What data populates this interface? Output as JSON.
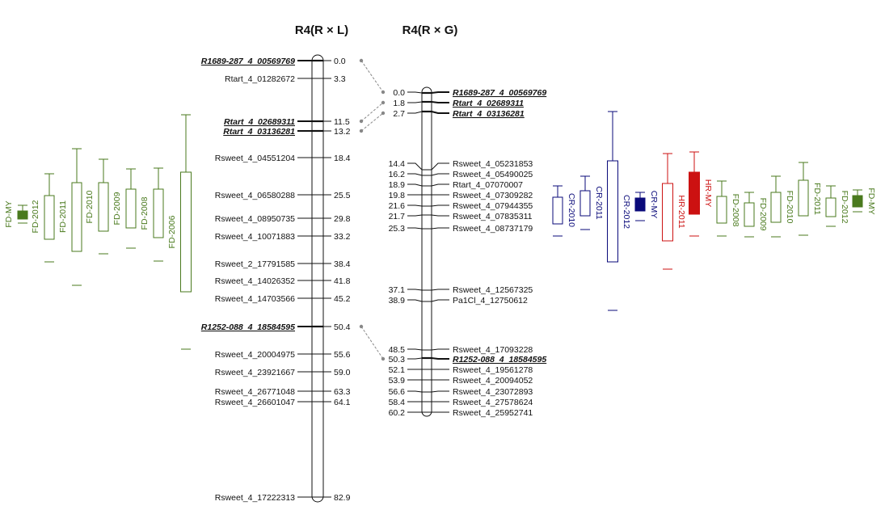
{
  "titles": {
    "left": "R4(R × L)",
    "right": "R4(R × G)"
  },
  "colors": {
    "fd": "#4a7a1e",
    "cr": "#0a0a7a",
    "hr": "#cc1111",
    "link": "#888888",
    "line": "#111111"
  },
  "chr_left": {
    "markers": [
      {
        "pos": "0.0",
        "name": "R1689-287_4_00569769",
        "bold": true
      },
      {
        "pos": "3.3",
        "name": "Rtart_4_01282672",
        "bold": false
      },
      {
        "pos": "11.5",
        "name": "Rtart_4_02689311",
        "bold": true
      },
      {
        "pos": "13.2",
        "name": "Rtart_4_03136281",
        "bold": true
      },
      {
        "pos": "18.4",
        "name": "Rsweet_4_04551204",
        "bold": false
      },
      {
        "pos": "25.5",
        "name": "Rsweet_4_06580288",
        "bold": false
      },
      {
        "pos": "29.8",
        "name": "Rsweet_4_08950735",
        "bold": false
      },
      {
        "pos": "33.2",
        "name": "Rsweet_4_10071883",
        "bold": false
      },
      {
        "pos": "38.4",
        "name": "Rsweet_2_17791585",
        "bold": false
      },
      {
        "pos": "41.8",
        "name": "Rsweet_4_14026352",
        "bold": false
      },
      {
        "pos": "45.2",
        "name": "Rsweet_4_14703566",
        "bold": false
      },
      {
        "pos": "50.4",
        "name": "R1252-088_4_18584595",
        "bold": true
      },
      {
        "pos": "55.6",
        "name": "Rsweet_4_20004975",
        "bold": false
      },
      {
        "pos": "59.0",
        "name": "Rsweet_4_23921667",
        "bold": false
      },
      {
        "pos": "63.3",
        "name": "Rsweet_4_26771048",
        "bold": false
      },
      {
        "pos": "64.1",
        "name": "Rsweet_4_26601047",
        "bold": false
      },
      {
        "pos": "82.9",
        "name": "Rsweet_4_17222313",
        "bold": false
      }
    ]
  },
  "chr_right": {
    "markers": [
      {
        "pos": "0.0",
        "name": "R1689-287_4_00569769",
        "bold": true
      },
      {
        "pos": "1.8",
        "name": "Rtart_4_02689311",
        "bold": true
      },
      {
        "pos": "2.7",
        "name": "Rtart_4_03136281",
        "bold": true
      },
      {
        "pos": "14.4",
        "name": "Rsweet_4_05231853",
        "bold": false
      },
      {
        "pos": "16.2",
        "name": "Rsweet_4_05490025",
        "bold": false
      },
      {
        "pos": "18.9",
        "name": "Rtart_4_07070007",
        "bold": false
      },
      {
        "pos": "19.8",
        "name": "Rsweet_4_07309282",
        "bold": false
      },
      {
        "pos": "21.6",
        "name": "Rsweet_4_07944355",
        "bold": false
      },
      {
        "pos": "21.7",
        "name": "Rsweet_4_07835311",
        "bold": false
      },
      {
        "pos": "25.3",
        "name": "Rsweet_4_08737179",
        "bold": false
      },
      {
        "pos": "37.1",
        "name": "Rsweet_4_12567325",
        "bold": false
      },
      {
        "pos": "38.9",
        "name": "Pa1Cl_4_12750612",
        "bold": false
      },
      {
        "pos": "48.5",
        "name": "Rsweet_4_17093228",
        "bold": false
      },
      {
        "pos": "50.3",
        "name": "R1252-088_4_18584595",
        "bold": true
      },
      {
        "pos": "52.1",
        "name": "Rsweet_4_19561278",
        "bold": false
      },
      {
        "pos": "53.9",
        "name": "Rsweet_4_20094052",
        "bold": false
      },
      {
        "pos": "56.6",
        "name": "Rsweet_4_23072893",
        "bold": false
      },
      {
        "pos": "58.4",
        "name": "Rsweet_4_27578624",
        "bold": false
      },
      {
        "pos": "60.2",
        "name": "Rsweet_4_25952741",
        "bold": false
      }
    ]
  },
  "qtl_left": [
    {
      "label": "FD-MY",
      "color": "fd",
      "filled": true
    },
    {
      "label": "FD-2012",
      "color": "fd",
      "filled": false
    },
    {
      "label": "FD-2011",
      "color": "fd",
      "filled": false
    },
    {
      "label": "FD-2010",
      "color": "fd",
      "filled": false
    },
    {
      "label": "FD-2009",
      "color": "fd",
      "filled": false
    },
    {
      "label": "FD-2008",
      "color": "fd",
      "filled": false
    },
    {
      "label": "FD-2006",
      "color": "fd",
      "filled": false
    }
  ],
  "qtl_right": [
    {
      "label": "CR-2010",
      "color": "cr",
      "filled": false
    },
    {
      "label": "CR-2011",
      "color": "cr",
      "filled": false
    },
    {
      "label": "CR-2012",
      "color": "cr",
      "filled": false
    },
    {
      "label": "CR-MY",
      "color": "cr",
      "filled": true
    },
    {
      "label": "HR-2011",
      "color": "hr",
      "filled": false
    },
    {
      "label": "HR-MY",
      "color": "hr",
      "filled": true
    },
    {
      "label": "FD-2008",
      "color": "fd",
      "filled": false
    },
    {
      "label": "FD-2009",
      "color": "fd",
      "filled": false
    },
    {
      "label": "FD-2010",
      "color": "fd",
      "filled": false
    },
    {
      "label": "FD-2011",
      "color": "fd",
      "filled": false
    },
    {
      "label": "FD-2012",
      "color": "fd",
      "filled": false
    },
    {
      "label": "FD-MY",
      "color": "fd",
      "filled": true
    }
  ]
}
